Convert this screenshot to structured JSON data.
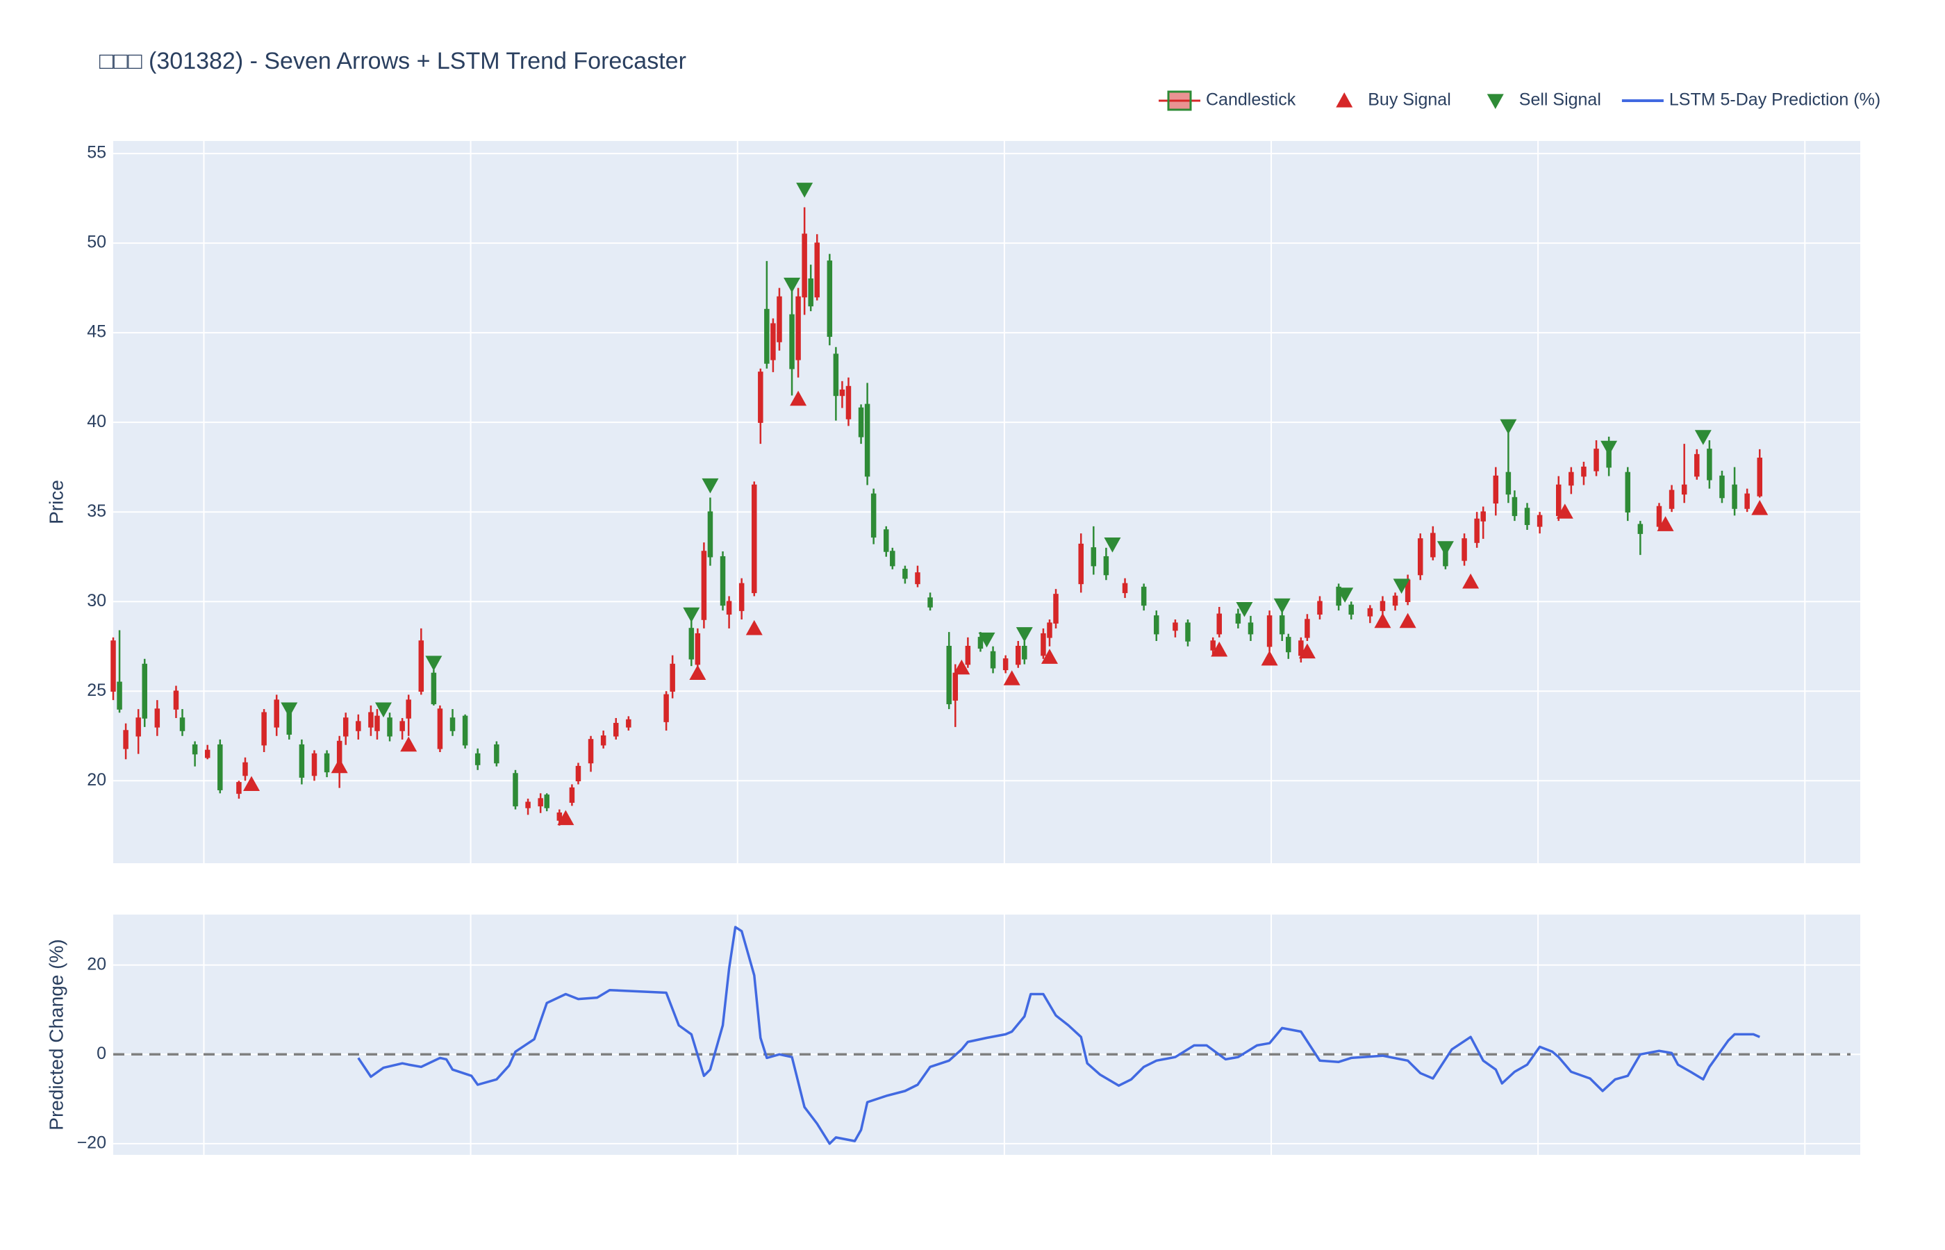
{
  "chart_data": [
    {
      "type": "candlestick",
      "title": "□□□ (301382) - Seven Arrows + LSTM Trend Forecaster",
      "ylabel": "Price",
      "name": "Candlestick",
      "increasing_color": "#d62728",
      "decreasing_color": "#2e8b36",
      "x": [
        0,
        1,
        2,
        4,
        5,
        7,
        10,
        11,
        13,
        15,
        17,
        20,
        21,
        24,
        26,
        28,
        30,
        32,
        34,
        36,
        37,
        39,
        41,
        42,
        44,
        46,
        47,
        49,
        51,
        52,
        54,
        56,
        58,
        61,
        64,
        66,
        68,
        69,
        71,
        73,
        74,
        76,
        78,
        80,
        82,
        88,
        89,
        92,
        93,
        94,
        95,
        97,
        98,
        100,
        102,
        103,
        104,
        105,
        106,
        108,
        109,
        110,
        111,
        112,
        114,
        115,
        116,
        117,
        119,
        120,
        121,
        123,
        124,
        126,
        128,
        130,
        133,
        134,
        136,
        138,
        140,
        142,
        144,
        145,
        148,
        149,
        150,
        154,
        156,
        158,
        161,
        164,
        166,
        169,
        171,
        175,
        176,
        179,
        181,
        184,
        186,
        187,
        189,
        190,
        192,
        195,
        197,
        200,
        202,
        204,
        206,
        208,
        210,
        212,
        215,
        217,
        218,
        220,
        222,
        223,
        225,
        227,
        230,
        232,
        234,
        236,
        238,
        241,
        243,
        246,
        248,
        250,
        252,
        254,
        256,
        258,
        260,
        262
      ],
      "open": [
        25,
        25.5,
        21.8,
        22.5,
        26.5,
        23,
        24,
        23.5,
        22,
        21.3,
        22,
        19.3,
        20.3,
        22,
        23,
        24,
        22,
        20.3,
        21.5,
        20.5,
        22.5,
        22.8,
        23,
        22.8,
        23.5,
        22.8,
        23.5,
        25,
        26,
        21.8,
        23.5,
        23.6,
        21.5,
        22,
        20.4,
        18.5,
        18.6,
        19.2,
        17.8,
        18.8,
        20,
        21,
        22,
        22.5,
        23,
        23.3,
        25,
        28.5,
        26.5,
        29,
        35,
        32.5,
        29.3,
        29.5,
        30.5,
        40,
        46.3,
        43.5,
        44.5,
        46,
        43.5,
        47,
        48,
        47,
        49,
        43.8,
        41.5,
        40.2,
        40.8,
        41,
        36,
        34,
        32.8,
        31.8,
        31,
        30.2,
        27.5,
        24.5,
        26.5,
        28,
        27.2,
        26.2,
        26.5,
        27.5,
        27,
        28,
        28.8,
        31,
        33,
        32.5,
        30.5,
        30.8,
        29.2,
        28.4,
        28.8,
        27.3,
        28.2,
        29.3,
        28.8,
        27.5,
        29.2,
        28,
        27,
        28,
        29.3,
        30.8,
        29.8,
        29.2,
        29.5,
        29.8,
        30,
        31.5,
        32.5,
        33,
        32.3,
        33.3,
        34.5,
        35.5,
        37.2,
        35.8,
        35.2,
        34.2,
        34.8,
        36.5,
        37,
        37.3,
        38.5,
        37.2,
        34.3,
        34.2,
        35.2,
        36,
        37,
        38.5,
        37,
        36.5,
        35.2,
        35.9
      ],
      "high": [
        28,
        28.4,
        23.2,
        24,
        26.8,
        24.5,
        25.3,
        24,
        22.2,
        22,
        22.3,
        20,
        21.3,
        24,
        24.8,
        24.2,
        22.3,
        21.7,
        21.7,
        22.5,
        23.8,
        23.7,
        24.2,
        24,
        23.8,
        23.5,
        24.8,
        28.5,
        26.2,
        24.2,
        24,
        23.7,
        21.8,
        22.2,
        20.6,
        19,
        19.3,
        19.3,
        18.4,
        19.8,
        21,
        22.5,
        22.8,
        23.5,
        23.6,
        25,
        27,
        29.2,
        28.5,
        33.3,
        35.8,
        32.8,
        30.3,
        31.3,
        36.7,
        43,
        49,
        45.8,
        47.5,
        47.5,
        47.5,
        52,
        48.8,
        50.5,
        49.4,
        44.2,
        42.3,
        42.5,
        41,
        42.2,
        36.3,
        34.2,
        33,
        32,
        32,
        30.5,
        28.3,
        26.5,
        28,
        28.3,
        27.5,
        27,
        27.8,
        27.8,
        28.5,
        29,
        30.7,
        33.8,
        34.2,
        33,
        31.3,
        31,
        29.5,
        29,
        29,
        28,
        29.7,
        29.6,
        29.2,
        29.5,
        29.5,
        28.2,
        28,
        29.3,
        30.3,
        31,
        30,
        29.8,
        30.3,
        30.5,
        31.5,
        33.8,
        34.2,
        33.3,
        33.8,
        35,
        35.3,
        37.5,
        39.8,
        36.2,
        35.5,
        35,
        37,
        37.5,
        37.8,
        39,
        39.2,
        37.5,
        34.5,
        35.5,
        36.5,
        38.8,
        38.5,
        39,
        37.3,
        37.5,
        36.3,
        38.5
      ],
      "low": [
        24.5,
        23.8,
        21.2,
        21.5,
        23,
        22.5,
        23.5,
        22.5,
        20.8,
        21.2,
        19.3,
        19,
        20,
        21.6,
        22.5,
        22.3,
        19.8,
        20,
        20.2,
        19.6,
        22,
        22.3,
        22.5,
        22.3,
        22.2,
        22.3,
        22.5,
        24.8,
        24.2,
        21.6,
        22.5,
        21.8,
        20.6,
        20.8,
        18.4,
        18.1,
        18.2,
        18.3,
        17.5,
        18.6,
        19.8,
        20.5,
        21.8,
        22.3,
        22.8,
        22.8,
        24.6,
        26.4,
        26,
        28.5,
        32,
        29.5,
        28.5,
        29,
        30.3,
        38.8,
        43,
        42.8,
        44,
        41.5,
        42.5,
        46,
        46.2,
        46.8,
        44.3,
        40.1,
        40.8,
        39.8,
        38.8,
        36.5,
        33.2,
        32.5,
        31.8,
        31,
        30.8,
        29.5,
        24,
        23,
        26.3,
        27.2,
        26,
        26,
        26.3,
        26.5,
        26.8,
        27.5,
        28.5,
        30.5,
        31.5,
        31.2,
        30.2,
        29.5,
        27.8,
        28,
        27.5,
        27,
        28,
        28.5,
        27.8,
        27.2,
        27.8,
        26.8,
        26.6,
        27.8,
        29,
        29.5,
        29,
        28.8,
        29.2,
        29.5,
        29.8,
        31.2,
        32.3,
        31.8,
        32,
        33,
        33.5,
        34.8,
        35.5,
        34.5,
        34,
        33.8,
        34.5,
        36,
        36.5,
        37,
        37,
        34.5,
        32.6,
        34,
        35,
        35.5,
        36.8,
        36.3,
        35.5,
        34.8,
        35,
        35.8
      ],
      "close": [
        27.8,
        24,
        22.8,
        23.5,
        23.5,
        24,
        25,
        22.8,
        21.5,
        21.7,
        19.5,
        19.9,
        21,
        23.8,
        24.5,
        22.6,
        20.2,
        21.5,
        20.5,
        22.2,
        23.5,
        23.3,
        23.8,
        23.6,
        22.5,
        23.3,
        24.5,
        27.8,
        24.3,
        24,
        22.8,
        22,
        20.9,
        21,
        18.6,
        18.8,
        19,
        18.5,
        18.2,
        19.6,
        20.8,
        22.3,
        22.5,
        23.2,
        23.4,
        24.8,
        26.5,
        26.8,
        28.2,
        32.8,
        32.5,
        29.8,
        30,
        31,
        36.5,
        42.8,
        43.3,
        45.5,
        47,
        43,
        47,
        50.5,
        46.5,
        50,
        44.8,
        41.5,
        41.8,
        42,
        39.2,
        37,
        33.6,
        32.8,
        32,
        31.3,
        31.6,
        29.7,
        24.3,
        26,
        27.5,
        27.4,
        26.3,
        26.8,
        27.5,
        26.8,
        28.2,
        28.8,
        30.4,
        33.2,
        32,
        31.5,
        31,
        29.8,
        28.2,
        28.8,
        27.8,
        27.8,
        29.3,
        28.8,
        28.2,
        29.2,
        28.2,
        27.2,
        27.8,
        29,
        30,
        29.8,
        29.3,
        29.6,
        30,
        30.3,
        31.2,
        33.5,
        33.8,
        32,
        33.5,
        34.6,
        35,
        37,
        36,
        34.8,
        34.3,
        34.8,
        36.5,
        37.2,
        37.5,
        38.5,
        37.5,
        35,
        33.8,
        35.3,
        36.2,
        36.5,
        38.2,
        36.8,
        35.8,
        35.2,
        36,
        38
      ],
      "signals": [
        {
          "name": "Buy Signal",
          "color": "#d62728",
          "marker": "triangle-up",
          "x": [
            22,
            36,
            47,
            72,
            93,
            102,
            109,
            135,
            143,
            149,
            176,
            184,
            190,
            202,
            206,
            216,
            231,
            247,
            262
          ],
          "values": [
            19.8,
            20.8,
            22,
            17.9,
            26,
            28.5,
            41.3,
            26.3,
            25.7,
            26.9,
            27.3,
            26.8,
            27.2,
            28.9,
            28.9,
            31.1,
            35,
            34.3,
            35.2
          ]
        },
        {
          "name": "Sell Signal",
          "color": "#2e8b36",
          "marker": "triangle-down",
          "x": [
            28,
            43,
            51,
            92,
            95,
            108,
            110,
            139,
            145,
            159,
            180,
            186,
            196,
            205,
            212,
            222,
            238,
            253
          ],
          "values": [
            24,
            24,
            26.6,
            29.3,
            36.5,
            47.7,
            53,
            27.9,
            28.2,
            33.2,
            29.6,
            29.8,
            30.4,
            30.9,
            33,
            39.8,
            38.6,
            39.2
          ]
        }
      ],
      "xlim": [
        0,
        278
      ],
      "ylim": [
        15.4,
        55.7
      ],
      "yticks": [
        20,
        25,
        30,
        35,
        40,
        45,
        50,
        55
      ],
      "grid": true
    },
    {
      "type": "line",
      "ylabel": "Predicted Change (%)",
      "series": [
        {
          "name": "LSTM 5-Day Prediction (%)",
          "color": "#4169e1",
          "x": [
            39,
            41,
            43,
            46,
            47,
            49,
            52,
            53,
            54,
            57,
            58,
            61,
            63,
            64,
            67,
            69,
            72,
            74,
            77,
            79,
            88,
            90,
            92,
            94,
            95,
            97,
            98,
            99,
            100,
            102,
            103,
            104,
            106,
            108,
            110,
            112,
            114,
            115,
            118,
            119,
            120,
            123,
            126,
            128,
            130,
            133,
            135,
            136,
            139,
            142,
            143,
            145,
            146,
            148,
            150,
            152,
            154,
            155,
            157,
            160,
            162,
            164,
            166,
            169,
            172,
            174,
            177,
            179,
            182,
            184,
            186,
            189,
            192,
            195,
            197,
            202,
            206,
            208,
            210,
            213,
            216,
            218,
            220,
            221,
            223,
            225,
            227,
            229,
            230,
            232,
            235,
            237,
            239,
            241,
            243,
            246,
            248,
            249,
            251,
            253,
            254,
            257,
            258,
            261,
            262
          ],
          "values": [
            -0.8,
            -5,
            -3,
            -2,
            -2.3,
            -2.8,
            -0.8,
            -1.1,
            -3.4,
            -4.8,
            -6.8,
            -5.6,
            -2.5,
            0.6,
            3.4,
            11.5,
            13.5,
            12.4,
            12.7,
            14.4,
            13.8,
            6.5,
            4.5,
            -4.8,
            -3.4,
            6.5,
            19.2,
            28.5,
            27.6,
            17.7,
            3.7,
            -0.8,
            0,
            -0.6,
            -11.8,
            -15.5,
            -20,
            -18.6,
            -19.4,
            -16.9,
            -10.7,
            -9.3,
            -8.2,
            -6.8,
            -2.8,
            -1.4,
            1.1,
            2.8,
            3.7,
            4.5,
            5.1,
            8.5,
            13.5,
            13.5,
            8.7,
            6.5,
            3.9,
            -2,
            -4.5,
            -7,
            -5.6,
            -2.8,
            -1.4,
            -0.6,
            2,
            2,
            -1.1,
            -0.6,
            2,
            2.5,
            5.9,
            5.1,
            -1.4,
            -1.7,
            -0.8,
            -0.3,
            -1.4,
            -4.2,
            -5.4,
            1.1,
            3.9,
            -1.4,
            -3.4,
            -6.5,
            -3.9,
            -2.3,
            1.7,
            0.6,
            -0.6,
            -3.9,
            -5.4,
            -8.2,
            -5.6,
            -4.8,
            0,
            0.8,
            0.3,
            -2.3,
            -3.9,
            -5.6,
            -2.8,
            3.1,
            4.5,
            4.5,
            3.9
          ]
        }
      ],
      "hline": 0,
      "xlim": [
        0,
        278
      ],
      "ylim": [
        -22.5,
        31.3
      ],
      "yticks": [
        {
          "value": -20,
          "label": "−20"
        },
        0,
        20
      ],
      "grid": true
    }
  ]
}
